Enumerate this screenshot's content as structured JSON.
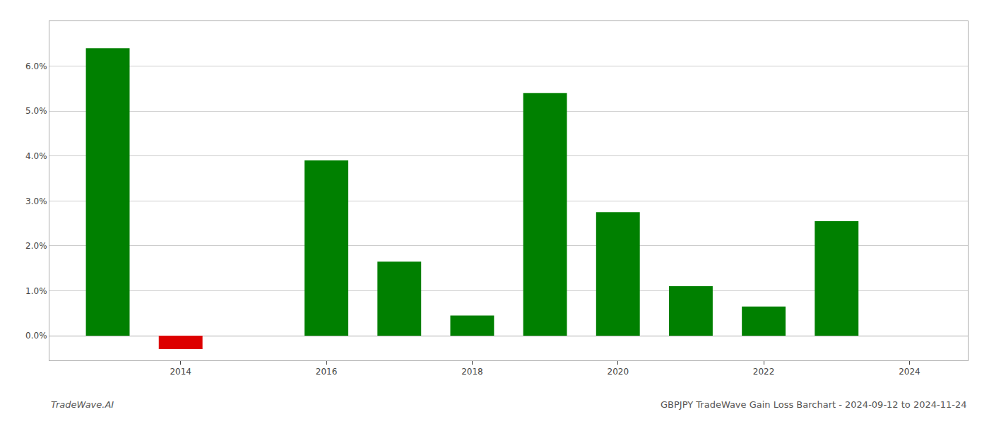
{
  "chart_data": {
    "type": "bar",
    "title": "GBPJPY TradeWave Gain Loss Barchart - 2024-09-12 to 2024-11-24",
    "annotations": [
      "TradeWave.AI"
    ],
    "x": [
      2013,
      2014,
      2015,
      2016,
      2017,
      2018,
      2019,
      2020,
      2021,
      2022,
      2023
    ],
    "values": [
      6.4,
      -0.3,
      0.0,
      3.9,
      1.65,
      0.45,
      5.4,
      2.75,
      1.1,
      0.65,
      2.55
    ],
    "colors": [
      "#008000",
      "#dd0000",
      "#ffffff",
      "#008000",
      "#008000",
      "#008000",
      "#008000",
      "#008000",
      "#008000",
      "#008000",
      "#008000"
    ],
    "xlim": [
      2012.2,
      2024.8
    ],
    "xticks": [
      2014,
      2016,
      2018,
      2020,
      2022,
      2024
    ],
    "ylim": [
      -0.55,
      7.0
    ],
    "yticks": [
      {
        "value": 0.0,
        "label": "0.0%"
      },
      {
        "value": 1.0,
        "label": "1.0%"
      },
      {
        "value": 2.0,
        "label": "2.0%"
      },
      {
        "value": 3.0,
        "label": "3.0%"
      },
      {
        "value": 4.0,
        "label": "4.0%"
      },
      {
        "value": 5.0,
        "label": "5.0%"
      },
      {
        "value": 6.0,
        "label": "6.0%"
      }
    ],
    "grid": true
  }
}
